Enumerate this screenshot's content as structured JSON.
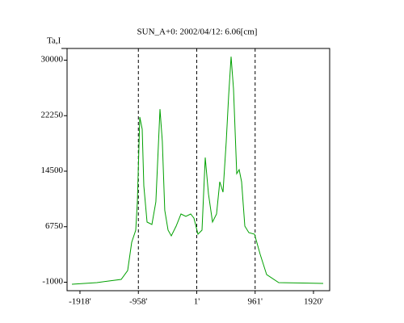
{
  "chart_data": {
    "type": "line",
    "title": "SUN_A+0: 2002/04/12: 6.06[cm]",
    "y_label": "Ta,I",
    "x": [
      -2050,
      -1640,
      -1240,
      -1134,
      -1068,
      -1001,
      -975,
      -935,
      -895,
      -868,
      -815,
      -736,
      -670,
      -603,
      -564,
      -524,
      -470,
      -417,
      -337,
      -257,
      -178,
      -98,
      -45,
      21,
      88,
      141,
      194,
      260,
      327,
      380,
      433,
      486,
      526,
      566,
      606,
      659,
      699,
      739,
      792,
      858,
      951,
      1044,
      1150,
      1349,
      2080
    ],
    "series": [
      {
        "color": "#00a000",
        "values": [
          -1340,
          -1110,
          -660,
          580,
          4520,
          6210,
          10160,
          22000,
          20300,
          12400,
          7340,
          7000,
          10160,
          23100,
          18600,
          9000,
          6210,
          5420,
          6780,
          8470,
          8130,
          8470,
          7900,
          5650,
          6210,
          16350,
          11280,
          7340,
          8470,
          12970,
          11510,
          18600,
          25030,
          30440,
          25930,
          14100,
          14660,
          12970,
          6780,
          5870,
          5650,
          2830,
          0,
          -1110,
          -1230
        ]
      }
    ],
    "xlim": [
      -2130,
      2186
    ],
    "ylim": [
      -2240,
      31580
    ],
    "xticks": [
      {
        "value": -1918,
        "label": "-1918'"
      },
      {
        "value": -958,
        "label": "-958'"
      },
      {
        "value": 1,
        "label": "1'"
      },
      {
        "value": 961,
        "label": "961'"
      },
      {
        "value": 1920,
        "label": "1920'"
      }
    ],
    "yticks": [
      -1000,
      6750,
      14500,
      22250,
      30000
    ],
    "vlines": [
      -958,
      1,
      961
    ]
  }
}
